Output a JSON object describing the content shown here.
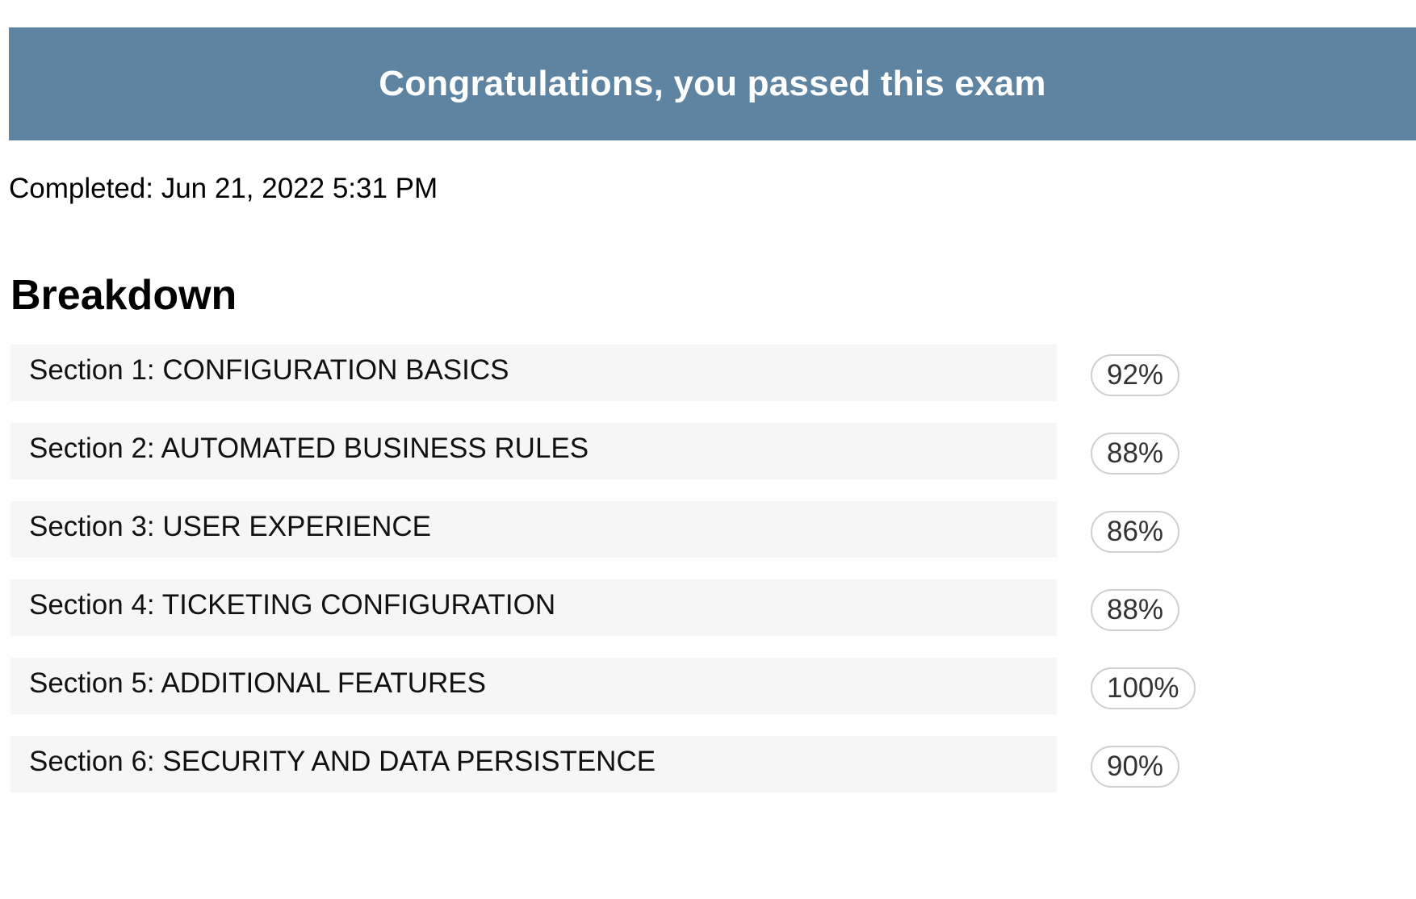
{
  "banner": {
    "title": "Congratulations, you passed this exam",
    "background_color": "#5f84a2"
  },
  "completed": {
    "text": "Completed: Jun 21, 2022 5:31 PM"
  },
  "breakdown": {
    "title": "Breakdown",
    "sections": [
      {
        "label": "Section 1: CONFIGURATION BASICS",
        "score": "92%"
      },
      {
        "label": "Section 2: AUTOMATED BUSINESS RULES",
        "score": "88%"
      },
      {
        "label": "Section 3: USER EXPERIENCE",
        "score": "86%"
      },
      {
        "label": "Section 4: TICKETING CONFIGURATION",
        "score": "88%"
      },
      {
        "label": "Section 5: ADDITIONAL FEATURES",
        "score": "100%"
      },
      {
        "label": "Section 6: SECURITY AND DATA PERSISTENCE",
        "score": "90%"
      }
    ]
  }
}
